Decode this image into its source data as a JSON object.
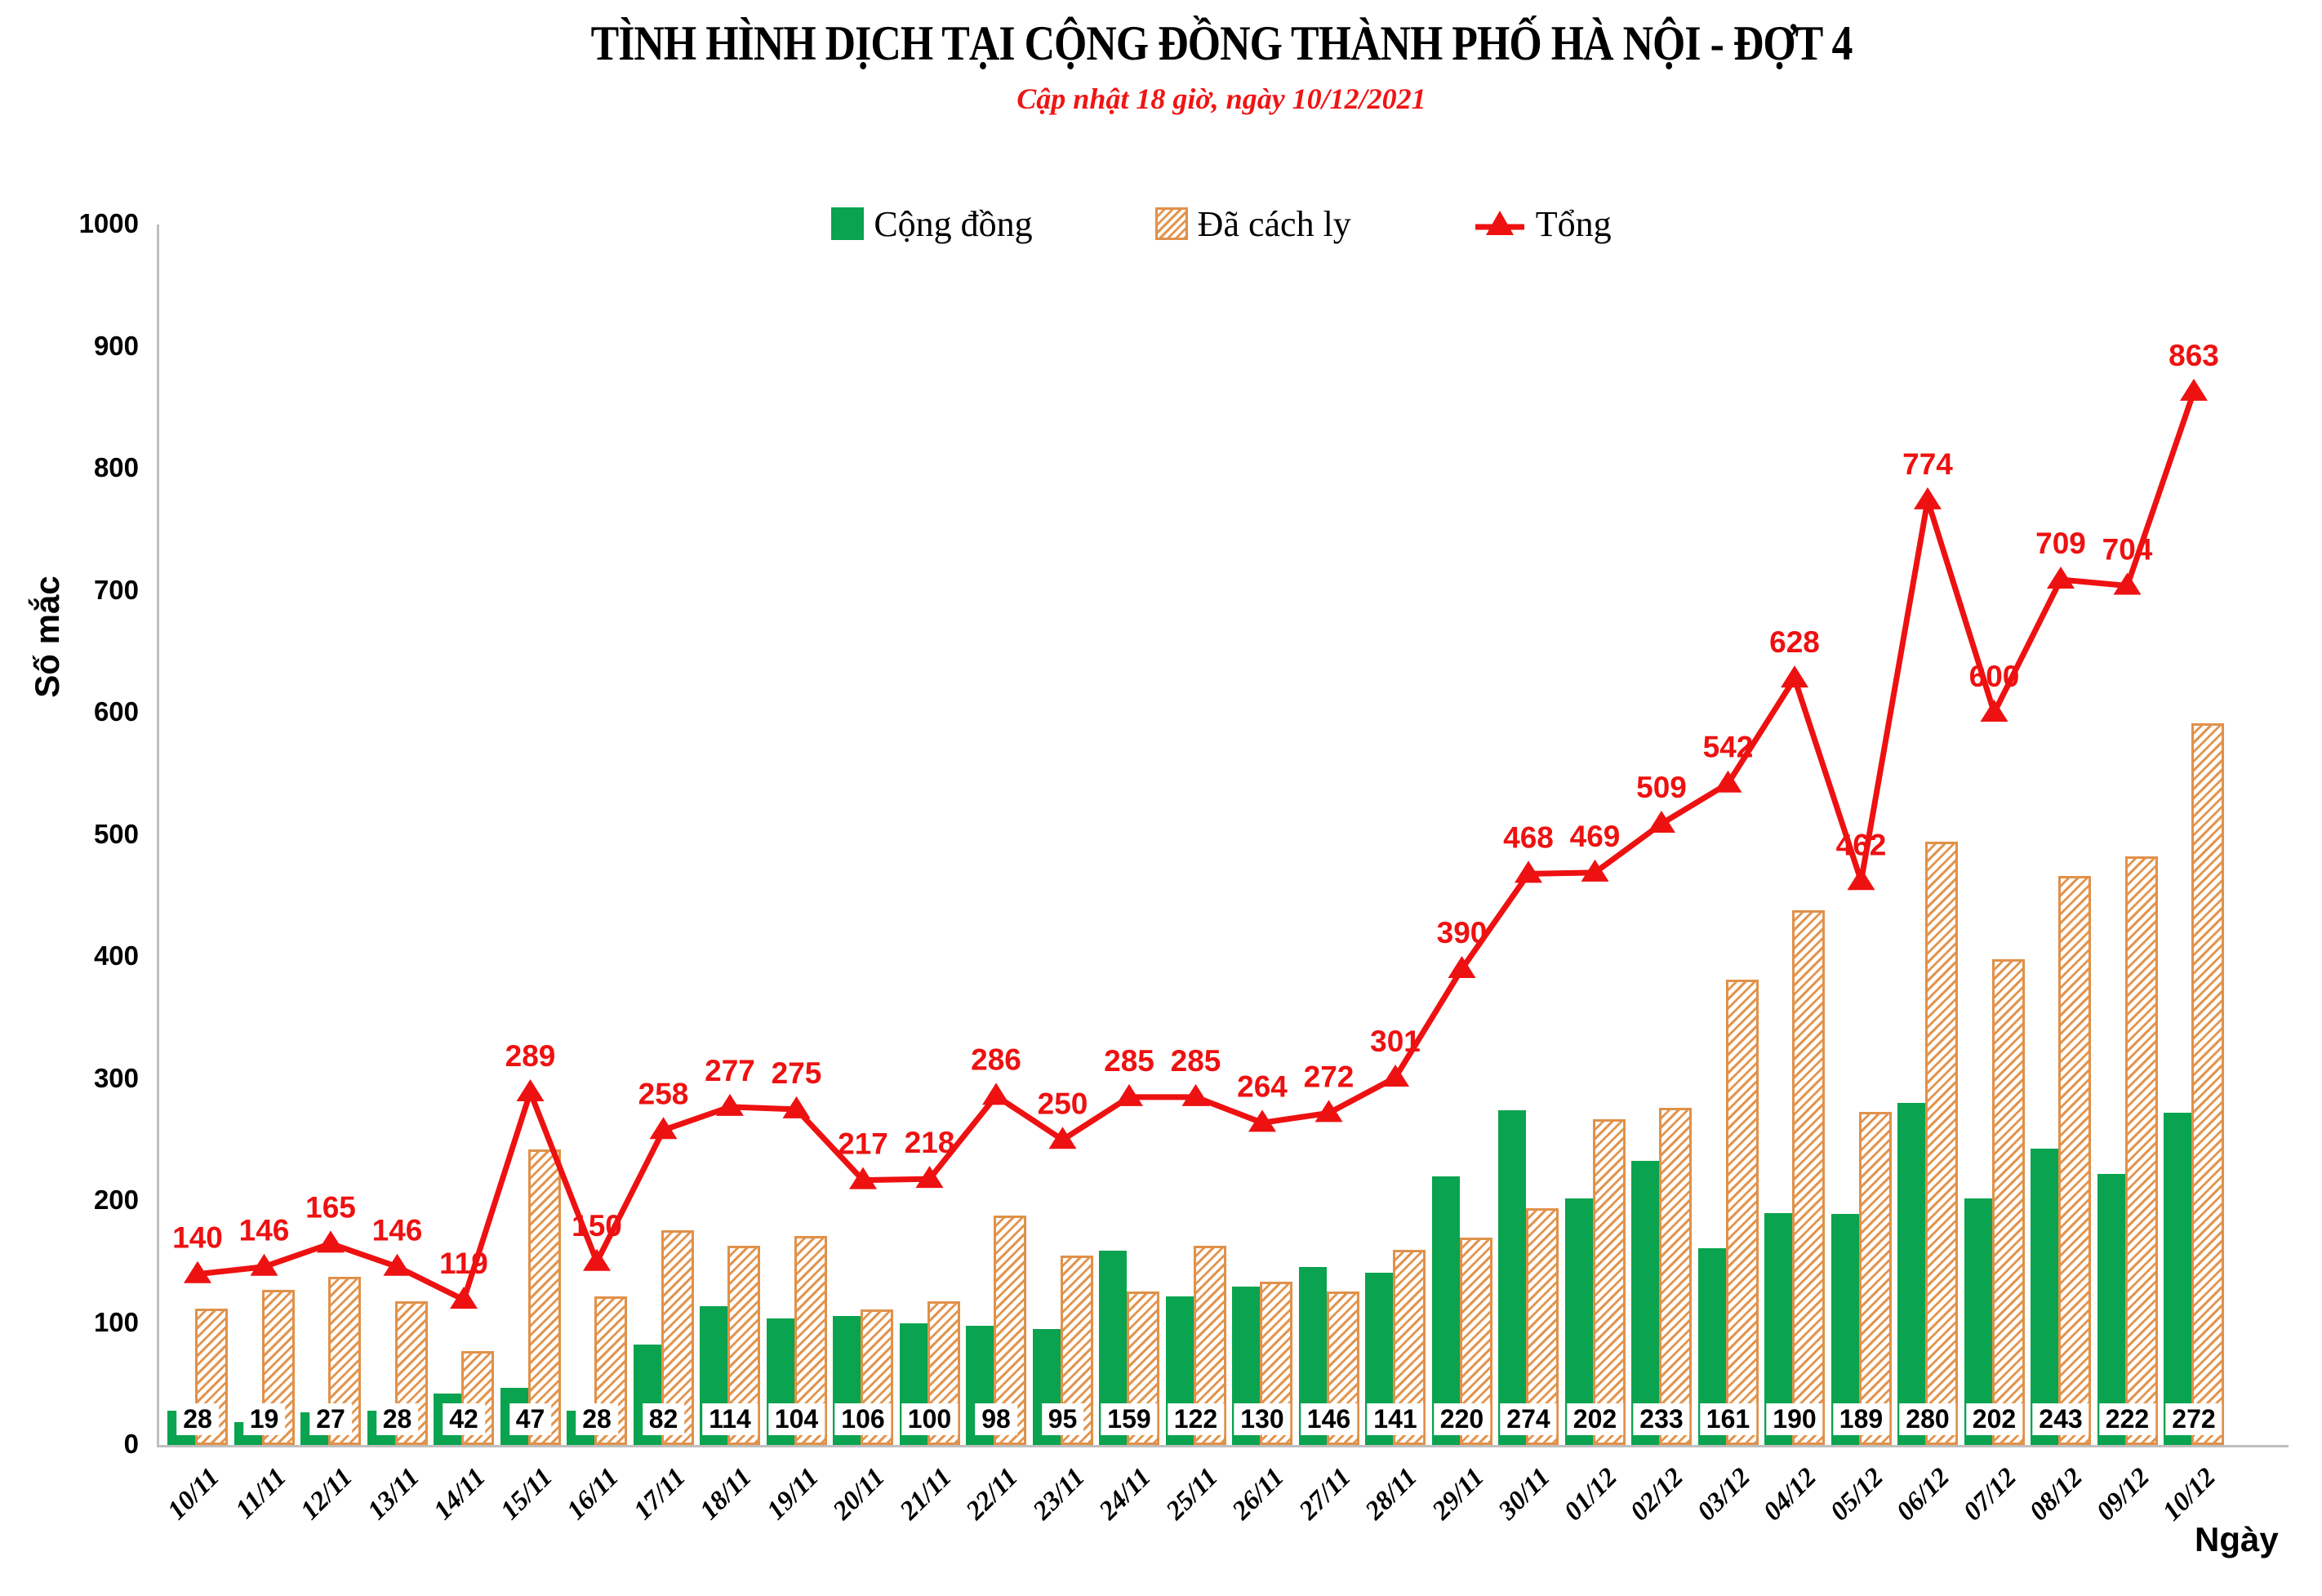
{
  "header": {
    "title": "TÌNH HÌNH DỊCH TẠI CỘNG ĐỒNG THÀNH PHỐ HÀ NỘI - ĐỢT 4",
    "subtitle": "Cập nhật 18 giờ, ngày 10/12/2021"
  },
  "legend": {
    "items": [
      {
        "label": "Cộng đồng",
        "swatch": "green-solid-square"
      },
      {
        "label": "Đã cách ly",
        "swatch": "orange-hatched-square"
      },
      {
        "label": "Tổng",
        "swatch": "red-triangle-marker"
      }
    ]
  },
  "axes": {
    "y_label": "Số mắc",
    "x_label": "Ngày",
    "y_ticks": [
      0,
      100,
      200,
      300,
      400,
      500,
      600,
      700,
      800,
      900,
      1000
    ]
  },
  "colors": {
    "community_green": "#0aa350",
    "quarantine_orange": "#e0914a",
    "total_red": "#ee1111",
    "axis_gray": "#bfbfbf",
    "subtitle_red": "#f01414"
  },
  "chart_data": {
    "type": "bar",
    "subtype": "grouped-bars-with-line-overlay",
    "title": "TÌNH HÌNH DỊCH TẠI CỘNG ĐỒNG THÀNH PHỐ HÀ NỘI - ĐỢT 4",
    "subtitle": "Cập nhật 18 giờ, ngày 10/12/2021",
    "xlabel": "Ngày",
    "ylabel": "Số mắc",
    "ylim": [
      0,
      1000
    ],
    "ytick_step": 100,
    "grid": false,
    "legend_position": "top",
    "categories": [
      "10/11",
      "11/11",
      "12/11",
      "13/11",
      "14/11",
      "15/11",
      "16/11",
      "17/11",
      "18/11",
      "19/11",
      "20/11",
      "21/11",
      "22/11",
      "23/11",
      "24/11",
      "25/11",
      "26/11",
      "27/11",
      "28/11",
      "29/11",
      "30/11",
      "01/12",
      "02/12",
      "03/12",
      "04/12",
      "05/12",
      "06/12",
      "07/12",
      "08/12",
      "09/12",
      "10/12"
    ],
    "series": [
      {
        "name": "Cộng đồng",
        "type": "bar",
        "style": "solid-green",
        "labels_shown": true,
        "values": [
          28,
          19,
          27,
          28,
          42,
          47,
          28,
          82,
          114,
          104,
          106,
          100,
          98,
          95,
          159,
          122,
          130,
          146,
          141,
          220,
          274,
          202,
          233,
          161,
          190,
          189,
          280,
          202,
          243,
          222,
          272
        ]
      },
      {
        "name": "Đã cách ly",
        "type": "bar",
        "style": "hatched-orange",
        "labels_shown": false,
        "values": [
          112,
          127,
          138,
          118,
          77,
          242,
          122,
          176,
          163,
          171,
          111,
          118,
          188,
          155,
          126,
          163,
          134,
          126,
          160,
          170,
          194,
          267,
          276,
          381,
          438,
          273,
          494,
          398,
          466,
          482,
          591
        ]
      },
      {
        "name": "Tổng",
        "type": "line",
        "style": "red-line-triangle-markers",
        "labels_shown": true,
        "values": [
          140,
          146,
          165,
          146,
          119,
          289,
          150,
          258,
          277,
          275,
          217,
          218,
          286,
          250,
          285,
          285,
          264,
          272,
          301,
          390,
          468,
          469,
          509,
          542,
          628,
          462,
          774,
          600,
          709,
          704,
          863
        ]
      }
    ]
  }
}
